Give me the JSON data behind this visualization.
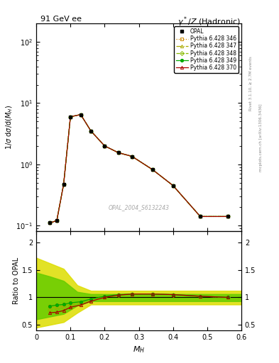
{
  "title_left": "91 GeV ee",
  "title_right": "γ*/Z (Hadronic)",
  "ylabel_main": "1/σ dσ/d(M_{H})",
  "ylabel_ratio": "Ratio to OPAL",
  "xlabel": "M_{H}",
  "watermark": "OPAL_2004_S6132243",
  "right_label1": "Rivet 3.1.10, ≥ 2.7M events",
  "right_label2": "mcplots.cern.ch [arXiv:1306.3436]",
  "opal_x": [
    0.04,
    0.06,
    0.08,
    0.1,
    0.13,
    0.16,
    0.2,
    0.24,
    0.28,
    0.34,
    0.4,
    0.48,
    0.56
  ],
  "opal_y": [
    0.11,
    0.12,
    0.47,
    6.0,
    6.5,
    3.5,
    2.0,
    1.55,
    1.35,
    0.82,
    0.45,
    0.14,
    0.14
  ],
  "mc_x": [
    0.04,
    0.06,
    0.08,
    0.1,
    0.13,
    0.16,
    0.2,
    0.24,
    0.28,
    0.34,
    0.4,
    0.48,
    0.56
  ],
  "mc_y": [
    0.11,
    0.12,
    0.47,
    6.0,
    6.5,
    3.5,
    2.0,
    1.55,
    1.35,
    0.82,
    0.45,
    0.14,
    0.14
  ],
  "ratio_x": [
    0.04,
    0.06,
    0.08,
    0.1,
    0.13,
    0.16,
    0.2,
    0.24,
    0.28,
    0.34,
    0.4,
    0.48,
    0.56
  ],
  "ratio_349": [
    0.84,
    0.86,
    0.87,
    0.9,
    0.92,
    0.97,
    1.02,
    1.05,
    1.06,
    1.06,
    1.05,
    1.02,
    1.0
  ],
  "ratio_370": [
    0.72,
    0.73,
    0.76,
    0.82,
    0.86,
    0.93,
    1.0,
    1.04,
    1.06,
    1.06,
    1.05,
    1.02,
    1.0
  ],
  "xlim": [
    0.0,
    0.6
  ],
  "ylim_main_lo": 0.08,
  "ylim_main_hi": 200,
  "ylim_ratio_lo": 0.4,
  "ylim_ratio_hi": 2.2,
  "yticks_ratio": [
    0.5,
    1.0,
    1.5,
    2.0
  ],
  "ytick_labels_ratio": [
    "0.5",
    "1",
    "1.5",
    "2"
  ],
  "colors": {
    "346": "#cc8800",
    "347": "#aaaa00",
    "348": "#88bb00",
    "349": "#00aa00",
    "370": "#aa0000"
  },
  "linestyles": {
    "346": "dotted",
    "347": "dashdot",
    "348": "dashed",
    "349": "solid",
    "370": "solid"
  },
  "markers": {
    "346": "s",
    "347": "^",
    "348": "D",
    "349": "o",
    "370": "^"
  },
  "marker_filled": {
    "346": false,
    "347": false,
    "348": false,
    "349": true,
    "370": false
  },
  "band_yellow_x": [
    0.0,
    0.04,
    0.08,
    0.12,
    0.16,
    0.6
  ],
  "band_yellow_lo": [
    0.45,
    0.5,
    0.55,
    0.72,
    0.87,
    0.87
  ],
  "band_yellow_hi": [
    1.72,
    1.62,
    1.52,
    1.22,
    1.12,
    1.12
  ],
  "band_green_x": [
    0.0,
    0.04,
    0.08,
    0.12,
    0.16,
    0.6
  ],
  "band_green_lo": [
    0.6,
    0.65,
    0.7,
    0.85,
    0.93,
    0.93
  ],
  "band_green_hi": [
    1.45,
    1.38,
    1.3,
    1.1,
    1.06,
    1.06
  ],
  "color_band_yellow": "#dddd00",
  "color_band_green": "#66cc00",
  "color_opal": "#000000",
  "opal_marker": "s",
  "opal_markersize": 3.5,
  "mc_markersize": 3.0,
  "mc_linewidth": 0.9,
  "legend_fontsize": 5.5,
  "axis_fontsize": 7,
  "title_fontsize": 8,
  "xlabel_fontsize": 8
}
